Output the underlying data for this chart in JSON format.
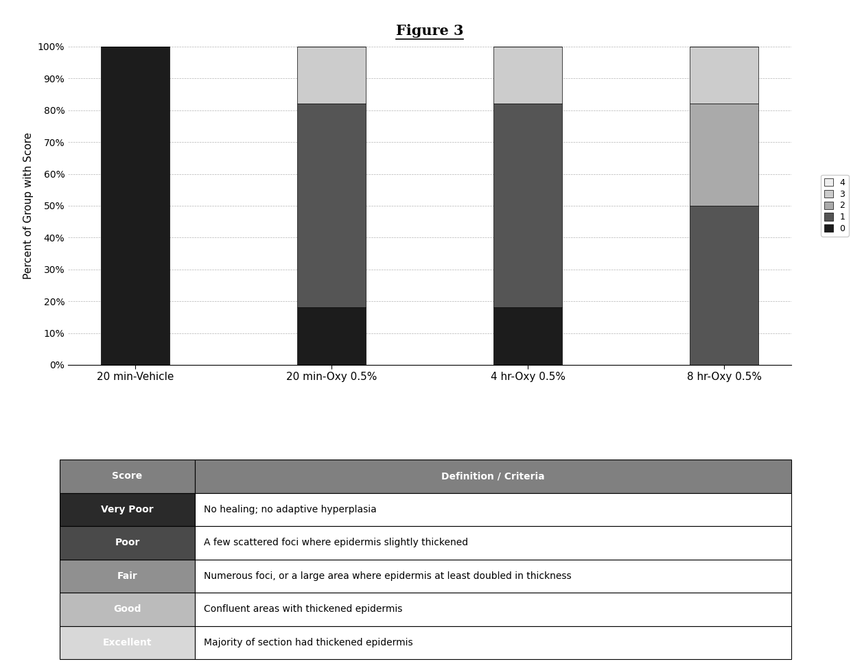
{
  "title": "Figure 3",
  "categories": [
    "20 min-Vehicle",
    "20 min-Oxy 0.5%",
    "4 hr-Oxy 0.5%",
    "8 hr-Oxy 0.5%"
  ],
  "scores_0": [
    100,
    18,
    18,
    0
  ],
  "scores_1": [
    0,
    64,
    64,
    50
  ],
  "scores_2": [
    0,
    0,
    0,
    32
  ],
  "scores_3": [
    0,
    18,
    18,
    18
  ],
  "scores_4": [
    0,
    0,
    0,
    0
  ],
  "color_0": "#1c1c1c",
  "color_1": "#555555",
  "color_2": "#aaaaaa",
  "color_3": "#cccccc",
  "color_4": "#eeeeee",
  "ylabel": "Percent of Group with Score",
  "yticks": [
    0,
    10,
    20,
    30,
    40,
    50,
    60,
    70,
    80,
    90,
    100
  ],
  "ytick_labels": [
    "0%",
    "10%",
    "20%",
    "30%",
    "40%",
    "50%",
    "60%",
    "70%",
    "80%",
    "90%",
    "100%"
  ],
  "bar_width": 0.35,
  "table_header": [
    "Score",
    "Definition / Criteria"
  ],
  "table_rows": [
    [
      "Very Poor",
      "No healing; no adaptive hyperplasia"
    ],
    [
      "Poor",
      "A few scattered foci where epidermis slightly thickened"
    ],
    [
      "Fair",
      "Numerous foci, or a large area where epidermis at least doubled in thickness"
    ],
    [
      "Good",
      "Confluent areas with thickened epidermis"
    ],
    [
      "Excellent",
      "Majority of section had thickened epidermis"
    ]
  ],
  "header_bg": "#808080",
  "row_left_colors": [
    "#2a2a2a",
    "#4a4a4a",
    "#909090",
    "#bbbbbb",
    "#d8d8d8"
  ],
  "col_split": 0.185
}
